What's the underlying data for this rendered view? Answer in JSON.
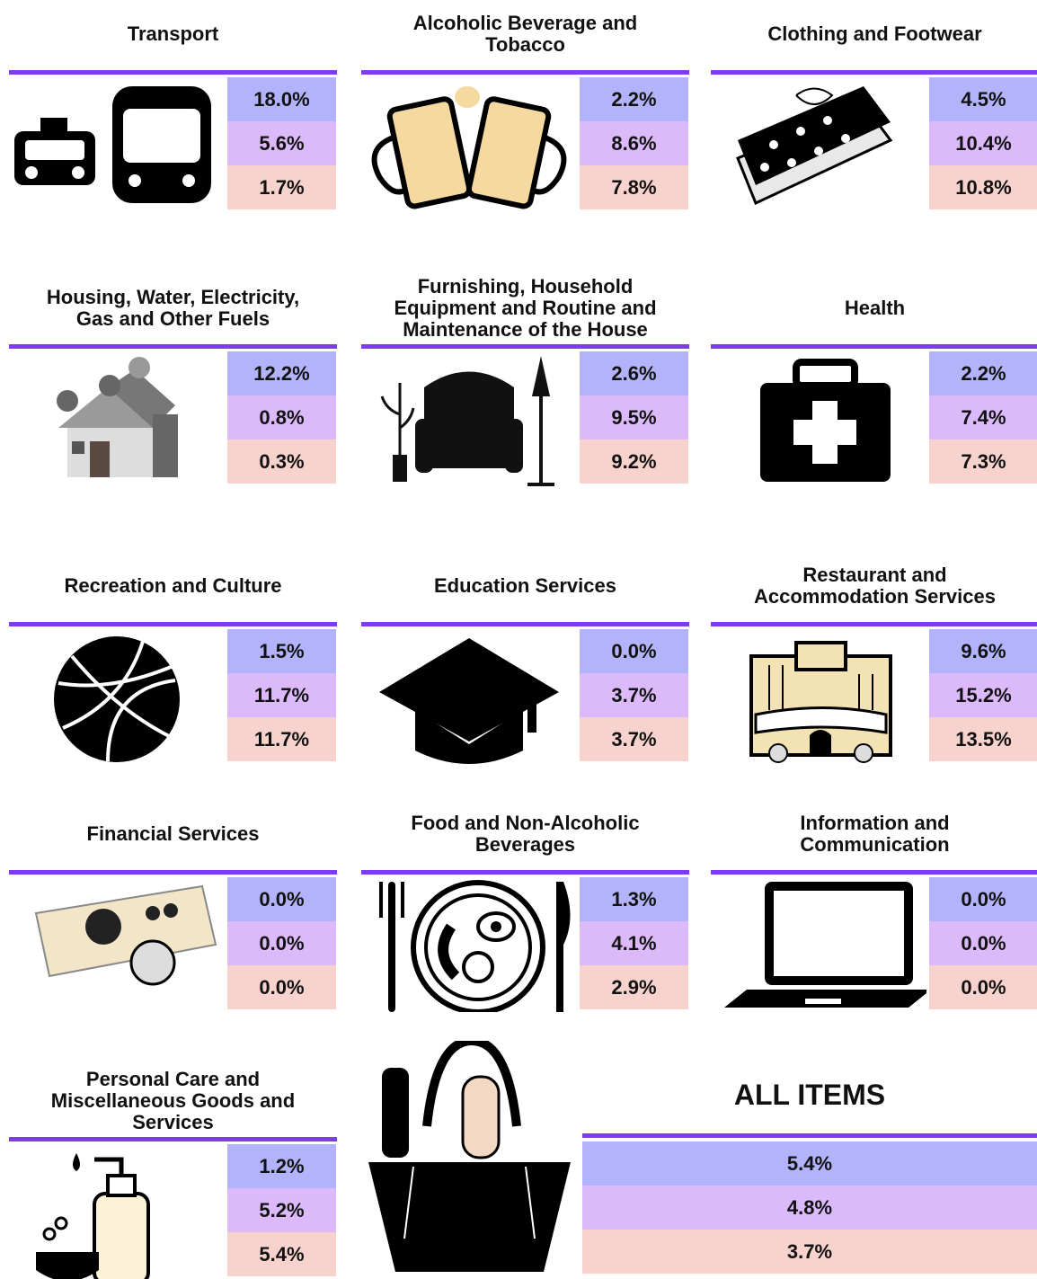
{
  "cards": [
    {
      "title": "Transport",
      "values": [
        "18.0%",
        "5.6%",
        "1.7%"
      ]
    },
    {
      "title": "Alcoholic Beverage and Tobacco",
      "values": [
        "2.2%",
        "8.6%",
        "7.8%"
      ]
    },
    {
      "title": "Clothing and Footwear",
      "values": [
        "4.5%",
        "10.4%",
        "10.8%"
      ]
    },
    {
      "title": "Housing, Water, Electricity, Gas and Other Fuels",
      "values": [
        "12.2%",
        "0.8%",
        "0.3%"
      ]
    },
    {
      "title": "Furnishing, Household Equipment and Routine and Maintenance of the House",
      "values": [
        "2.6%",
        "9.5%",
        "9.2%"
      ]
    },
    {
      "title": "Health",
      "values": [
        "2.2%",
        "7.4%",
        "7.3%"
      ]
    },
    {
      "title": "Recreation and Culture",
      "values": [
        "1.5%",
        "11.7%",
        "11.7%"
      ]
    },
    {
      "title": "Education Services",
      "values": [
        "0.0%",
        "3.7%",
        "3.7%"
      ]
    },
    {
      "title": "Restaurant and Accommodation Services",
      "values": [
        "9.6%",
        "15.2%",
        "13.5%"
      ]
    },
    {
      "title": "Financial Services",
      "values": [
        "0.0%",
        "0.0%",
        "0.0%"
      ]
    },
    {
      "title": "Food and Non-Alcoholic Beverages",
      "values": [
        "1.3%",
        "4.1%",
        "2.9%"
      ]
    },
    {
      "title": "Information and Communication",
      "values": [
        "0.0%",
        "0.0%",
        "0.0%"
      ]
    },
    {
      "title": "Personal Care and Miscellaneous Goods and Services",
      "values": [
        "1.2%",
        "5.2%",
        "5.4%"
      ]
    }
  ],
  "all_items": {
    "title": "ALL ITEMS",
    "values": [
      "5.4%",
      "4.8%",
      "3.7%"
    ]
  }
}
